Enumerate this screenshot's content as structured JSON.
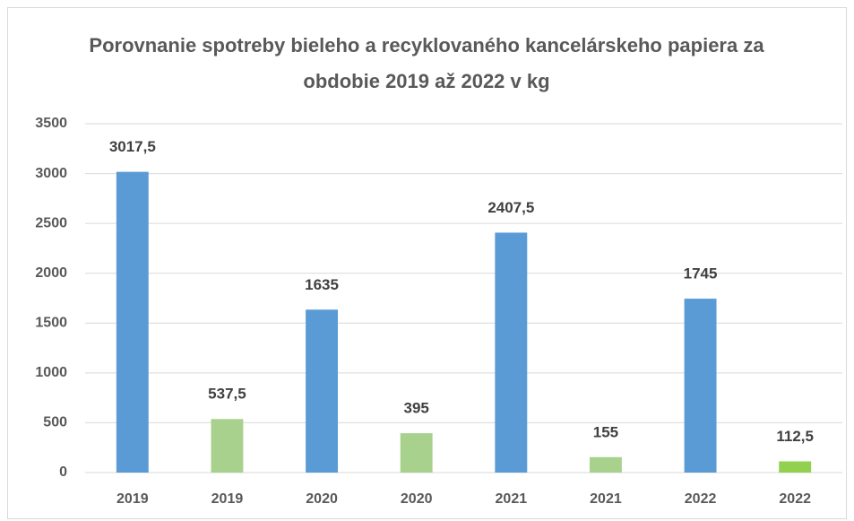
{
  "chart_data": {
    "type": "bar",
    "title": "Porovnanie spotreby bieleho a recyklovaného kancelárskeho papiera za obdobie 2019 až 2022 v kg",
    "categories": [
      "2019",
      "2019",
      "2020",
      "2020",
      "2021",
      "2021",
      "2022",
      "2022"
    ],
    "values": [
      3017.5,
      537.5,
      1635,
      395,
      2407.5,
      155,
      1745,
      112.5
    ],
    "value_labels": [
      "3017,5",
      "537,5",
      "1635",
      "395",
      "2407,5",
      "155",
      "1745",
      "112,5"
    ],
    "colors": [
      "#5b9bd5",
      "#a9d18e",
      "#5b9bd5",
      "#a9d18e",
      "#5b9bd5",
      "#a9d18e",
      "#5b9bd5",
      "#92d050"
    ],
    "ylim": [
      0,
      3500
    ],
    "yticks": [
      0,
      500,
      1000,
      1500,
      2000,
      2500,
      3000,
      3500
    ],
    "grid": true
  }
}
